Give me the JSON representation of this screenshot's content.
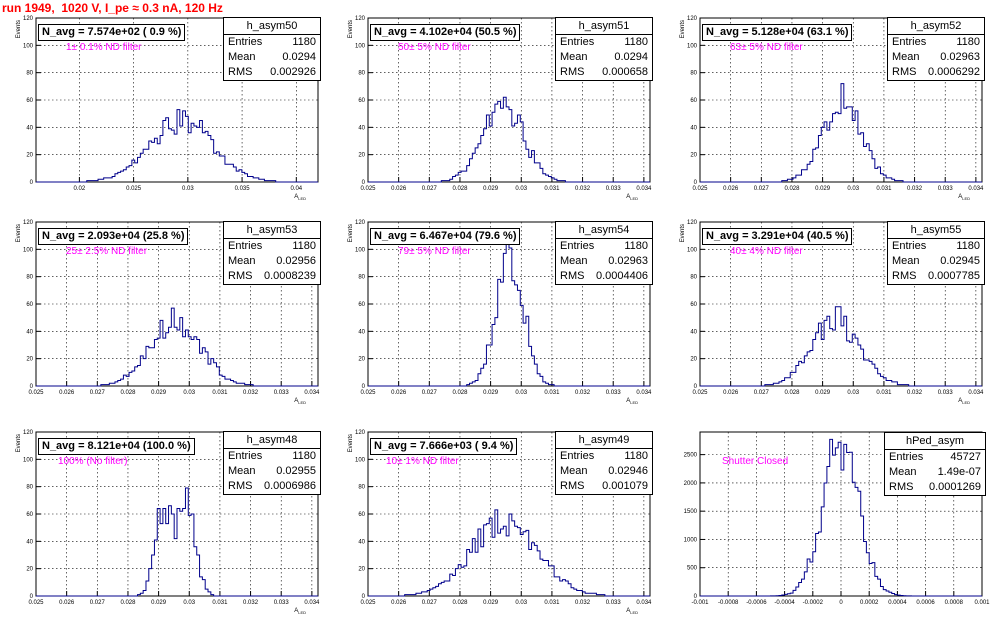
{
  "title": "run 1949,  1020 V, I_pe ≈ 0.3 nA, 120 Hz",
  "colors": {
    "title": "#ff0000",
    "note": "#ff00ff",
    "histogram": "#00008b",
    "axis": "#000000"
  },
  "stat_labels": {
    "entries": "Entries",
    "mean": "Mean",
    "rms": "RMS"
  },
  "panels": [
    {
      "id": "p0",
      "navg": "N_avg = 7.574e+02 ( 0.9 %)",
      "note": "1± 0.1% ND filter",
      "stats": {
        "name": "h_asym50",
        "entries": "1180",
        "mean": "0.0294",
        "rms": "0.002926"
      }
    },
    {
      "id": "p1",
      "navg": "N_avg = 4.102e+04 (50.5 %)",
      "note": "50± 5% ND filter",
      "stats": {
        "name": "h_asym51",
        "entries": "1180",
        "mean": "0.0294",
        "rms": "0.000658"
      }
    },
    {
      "id": "p2",
      "navg": "N_avg = 5.128e+04 (63.1 %)",
      "note": "63± 5% ND filter",
      "stats": {
        "name": "h_asym52",
        "entries": "1180",
        "mean": "0.02963",
        "rms": "0.0006292"
      }
    },
    {
      "id": "p3",
      "navg": "N_avg = 2.093e+04 (25.8 %)",
      "note": "25± 2.5% ND filter",
      "stats": {
        "name": "h_asym53",
        "entries": "1180",
        "mean": "0.02956",
        "rms": "0.0008239"
      }
    },
    {
      "id": "p4",
      "navg": "N_avg = 6.467e+04 (79.6 %)",
      "note": "79± 5% ND filter",
      "stats": {
        "name": "h_asym54",
        "entries": "1180",
        "mean": "0.02963",
        "rms": "0.0004406"
      }
    },
    {
      "id": "p5",
      "navg": "N_avg = 3.291e+04 (40.5 %)",
      "note": "40± 4% ND filter",
      "stats": {
        "name": "h_asym55",
        "entries": "1180",
        "mean": "0.02945",
        "rms": "0.0007785"
      }
    },
    {
      "id": "p6",
      "navg": "N_avg = 8.121e+04 (100.0 %)",
      "note": "100% (No filter)",
      "stats": {
        "name": "h_asym48",
        "entries": "1180",
        "mean": "0.02955",
        "rms": "0.0006986"
      }
    },
    {
      "id": "p7",
      "navg": "N_avg = 7.666e+03 ( 9.4 %)",
      "note": "10± 1% ND filter",
      "stats": {
        "name": "h_asym49",
        "entries": "1180",
        "mean": "0.02946",
        "rms": "0.001079"
      }
    },
    {
      "id": "p8",
      "navg": "",
      "note": "Shutter Closed",
      "stats": {
        "name": "hPed_asym",
        "entries": "45727",
        "mean": "1.49e-07",
        "rms": "0.0001269"
      }
    }
  ],
  "chart_data": [
    {
      "type": "histogram",
      "name": "h_asym50",
      "ylabel": "Events",
      "xlabel": "A",
      "xlabel_sub": "LED",
      "xlim": [
        0.016,
        0.042
      ],
      "ylim": [
        0,
        120
      ],
      "xticks": [
        0.02,
        0.025,
        0.03,
        0.035,
        0.04
      ],
      "xtick_labels": [
        "0.02",
        "0.025",
        "0.03",
        "0.035",
        "0.04"
      ],
      "yticks": [
        0,
        20,
        40,
        60,
        80,
        100,
        120
      ],
      "ytick_labels": [
        "0",
        "20",
        "40",
        "60",
        "80",
        "100",
        "120"
      ],
      "mean": 0.0294,
      "rms": 0.002926,
      "peak": 45,
      "entries": 1180
    },
    {
      "type": "histogram",
      "name": "h_asym51",
      "ylabel": "Events",
      "xlabel": "A",
      "xlabel_sub": "LED",
      "xlim": [
        0.025,
        0.0342
      ],
      "ylim": [
        0,
        120
      ],
      "xticks": [
        0.025,
        0.026,
        0.027,
        0.028,
        0.029,
        0.03,
        0.031,
        0.032,
        0.033,
        0.034
      ],
      "xtick_labels": [
        "0.025",
        "0.026",
        "0.027",
        "0.028",
        "0.029",
        "0.03",
        "0.031",
        "0.032",
        "0.033",
        "0.034"
      ],
      "yticks": [
        0,
        20,
        40,
        60,
        80,
        100,
        120
      ],
      "ytick_labels": [
        "0",
        "20",
        "40",
        "60",
        "80",
        "100",
        "120"
      ],
      "mean": 0.0294,
      "rms": 0.000658,
      "peak": 58,
      "entries": 1180
    },
    {
      "type": "histogram",
      "name": "h_asym52",
      "ylabel": "Events",
      "xlabel": "A",
      "xlabel_sub": "LED",
      "xlim": [
        0.025,
        0.0342
      ],
      "ylim": [
        0,
        120
      ],
      "xticks": [
        0.025,
        0.026,
        0.027,
        0.028,
        0.029,
        0.03,
        0.031,
        0.032,
        0.033,
        0.034
      ],
      "xtick_labels": [
        "0.025",
        "0.026",
        "0.027",
        "0.028",
        "0.029",
        "0.03",
        "0.031",
        "0.032",
        "0.033",
        "0.034"
      ],
      "yticks": [
        0,
        20,
        40,
        60,
        80,
        100,
        120
      ],
      "ytick_labels": [
        "0",
        "20",
        "40",
        "60",
        "80",
        "100",
        "120"
      ],
      "mean": 0.02963,
      "rms": 0.0006292,
      "peak": 62,
      "entries": 1180
    },
    {
      "type": "histogram",
      "name": "h_asym53",
      "ylabel": "Events",
      "xlabel": "A",
      "xlabel_sub": "LED",
      "xlim": [
        0.025,
        0.0342
      ],
      "ylim": [
        0,
        120
      ],
      "xticks": [
        0.025,
        0.026,
        0.027,
        0.028,
        0.029,
        0.03,
        0.031,
        0.032,
        0.033,
        0.034
      ],
      "xtick_labels": [
        "0.025",
        "0.026",
        "0.027",
        "0.028",
        "0.029",
        "0.03",
        "0.031",
        "0.032",
        "0.033",
        "0.034"
      ],
      "yticks": [
        0,
        20,
        40,
        60,
        80,
        100,
        120
      ],
      "ytick_labels": [
        "0",
        "20",
        "40",
        "60",
        "80",
        "100",
        "120"
      ],
      "mean": 0.02956,
      "rms": 0.0008239,
      "peak": 48,
      "entries": 1180
    },
    {
      "type": "histogram",
      "name": "h_asym54",
      "ylabel": "Events",
      "xlabel": "A",
      "xlabel_sub": "LED",
      "xlim": [
        0.025,
        0.0342
      ],
      "ylim": [
        0,
        120
      ],
      "xticks": [
        0.025,
        0.026,
        0.027,
        0.028,
        0.029,
        0.03,
        0.031,
        0.032,
        0.033,
        0.034
      ],
      "xtick_labels": [
        "0.025",
        "0.026",
        "0.027",
        "0.028",
        "0.029",
        "0.03",
        "0.031",
        "0.032",
        "0.033",
        "0.034"
      ],
      "yticks": [
        0,
        20,
        40,
        60,
        80,
        100,
        120
      ],
      "ytick_labels": [
        "0",
        "20",
        "40",
        "60",
        "80",
        "100",
        "120"
      ],
      "mean": 0.02963,
      "rms": 0.0004406,
      "peak": 100,
      "entries": 1180
    },
    {
      "type": "histogram",
      "name": "h_asym55",
      "ylabel": "Events",
      "xlabel": "A",
      "xlabel_sub": "LED",
      "xlim": [
        0.025,
        0.0342
      ],
      "ylim": [
        0,
        120
      ],
      "xticks": [
        0.025,
        0.026,
        0.027,
        0.028,
        0.029,
        0.03,
        0.031,
        0.032,
        0.033,
        0.034
      ],
      "xtick_labels": [
        "0.025",
        "0.026",
        "0.027",
        "0.028",
        "0.029",
        "0.03",
        "0.031",
        "0.032",
        "0.033",
        "0.034"
      ],
      "yticks": [
        0,
        20,
        40,
        60,
        80,
        100,
        120
      ],
      "ytick_labels": [
        "0",
        "20",
        "40",
        "60",
        "80",
        "100",
        "120"
      ],
      "mean": 0.02945,
      "rms": 0.0007785,
      "peak": 48,
      "entries": 1180
    },
    {
      "type": "histogram",
      "name": "h_asym48",
      "ylabel": "Events",
      "xlabel": "A",
      "xlabel_sub": "LED",
      "xlim": [
        0.025,
        0.0342
      ],
      "ylim": [
        0,
        120
      ],
      "xticks": [
        0.025,
        0.026,
        0.027,
        0.028,
        0.029,
        0.03,
        0.031,
        0.032,
        0.033,
        0.034
      ],
      "xtick_labels": [
        "0.025",
        "0.026",
        "0.027",
        "0.028",
        "0.029",
        "0.03",
        "0.031",
        "0.032",
        "0.033",
        "0.034"
      ],
      "yticks": [
        0,
        20,
        40,
        60,
        80,
        100,
        120
      ],
      "ytick_labels": [
        "0",
        "20",
        "40",
        "60",
        "80",
        "100",
        "120"
      ],
      "mean": 0.02955,
      "rms": 0.0006986,
      "peak": 72,
      "entries": 1180,
      "bimodal": true
    },
    {
      "type": "histogram",
      "name": "h_asym49",
      "ylabel": "Events",
      "xlabel": "A",
      "xlabel_sub": "LED",
      "xlim": [
        0.025,
        0.0342
      ],
      "ylim": [
        0,
        120
      ],
      "xticks": [
        0.025,
        0.026,
        0.027,
        0.028,
        0.029,
        0.03,
        0.031,
        0.032,
        0.033,
        0.034
      ],
      "xtick_labels": [
        "0.025",
        "0.026",
        "0.027",
        "0.028",
        "0.029",
        "0.03",
        "0.031",
        "0.032",
        "0.033",
        "0.034"
      ],
      "yticks": [
        0,
        20,
        40,
        60,
        80,
        100,
        120
      ],
      "ytick_labels": [
        "0",
        "20",
        "40",
        "60",
        "80",
        "100",
        "120"
      ],
      "mean": 0.02946,
      "rms": 0.001079,
      "peak": 55,
      "entries": 1180
    },
    {
      "type": "histogram",
      "name": "hPed_asym",
      "ylabel": "",
      "xlabel": "",
      "xlabel_sub": "",
      "xlim": [
        -0.001,
        0.001
      ],
      "ylim": [
        0,
        2900
      ],
      "xticks": [
        -0.001,
        -0.0008,
        -0.0006,
        -0.0004,
        -0.0002,
        0,
        0.0002,
        0.0004,
        0.0006,
        0.0008,
        0.001
      ],
      "xtick_labels": [
        "-0.001",
        "-0.0008",
        "-0.0006",
        "-0.0004",
        "-0.0002",
        "0",
        "0.0002",
        "0.0004",
        "0.0006",
        "0.0008",
        "0.001"
      ],
      "yticks": [
        0,
        500,
        1000,
        1500,
        2000,
        2500
      ],
      "ytick_labels": [
        "0",
        "500",
        "1000",
        "1500",
        "2000",
        "2500"
      ],
      "mean": 1.49e-07,
      "rms": 0.0001269,
      "peak": 2850,
      "entries": 45727
    }
  ]
}
